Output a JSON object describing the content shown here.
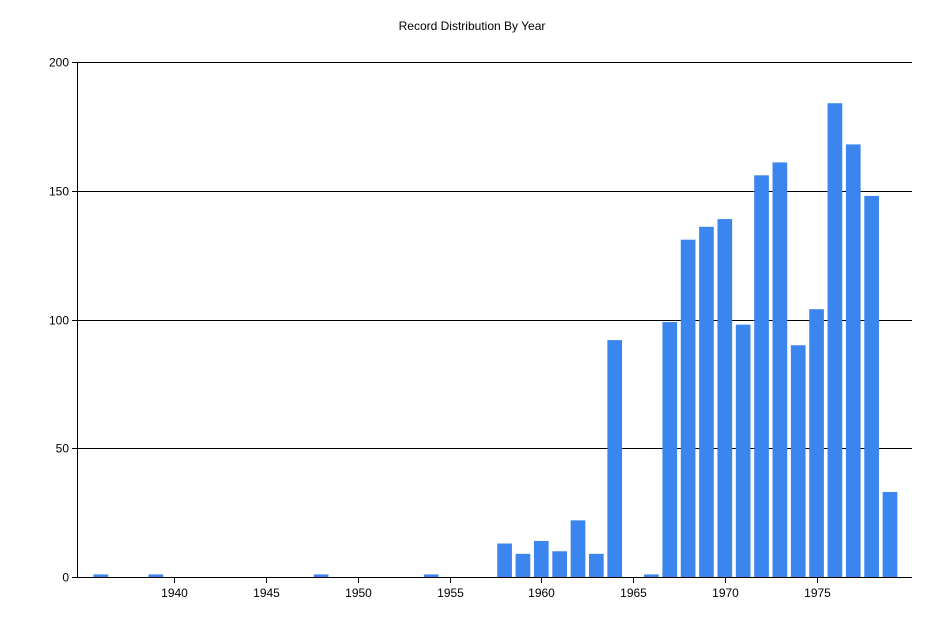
{
  "chart_data": {
    "type": "bar",
    "title": "Record Distribution By Year",
    "xlabel": "",
    "ylabel": "",
    "xlim": [
      1934.7,
      1980.2
    ],
    "ylim": [
      0,
      200
    ],
    "yticks": [
      0,
      50,
      100,
      150,
      200
    ],
    "xticks": [
      1940,
      1945,
      1950,
      1955,
      1960,
      1965,
      1970,
      1975
    ],
    "grid": "horizontal",
    "bar_color": "#3b86ee",
    "x": [
      1936,
      1939,
      1948,
      1954,
      1958,
      1959,
      1960,
      1961,
      1962,
      1963,
      1964,
      1966,
      1967,
      1968,
      1969,
      1970,
      1971,
      1972,
      1973,
      1974,
      1975,
      1976,
      1977,
      1978,
      1979
    ],
    "values": [
      1,
      1,
      1,
      1,
      13,
      9,
      14,
      10,
      22,
      9,
      92,
      1,
      99,
      131,
      136,
      139,
      98,
      156,
      161,
      90,
      104,
      184,
      168,
      148,
      33
    ]
  }
}
